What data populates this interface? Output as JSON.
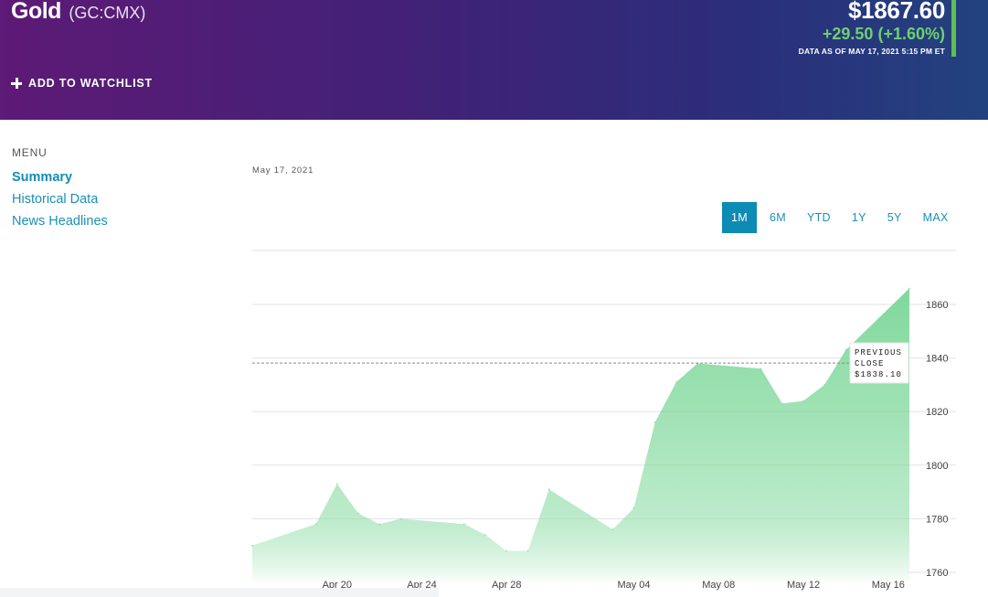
{
  "header": {
    "name": "Gold",
    "symbol": "(GC:CMX)",
    "price": "$1867.60",
    "change": "+29.50 (+1.60%)",
    "as_of": "DATA AS OF MAY 17, 2021 5:15 PM ET",
    "watchlist_label": "ADD TO WATCHLIST",
    "colors": {
      "positive": "#6fd06b",
      "bar": "#5fc04f"
    }
  },
  "menu": {
    "title": "MENU",
    "items": [
      {
        "label": "Summary",
        "active": true
      },
      {
        "label": "Historical Data",
        "active": false
      },
      {
        "label": "News Headlines",
        "active": false
      }
    ]
  },
  "chart_header": {
    "date": "May 17, 2021"
  },
  "ranges": [
    "1M",
    "6M",
    "YTD",
    "1Y",
    "5Y",
    "MAX"
  ],
  "chart_data": {
    "type": "area",
    "title": "",
    "xlabel": "",
    "ylabel": "",
    "ylim": [
      1760,
      1880
    ],
    "yticks": [
      "1860",
      "1840",
      "1820",
      "1800",
      "1780",
      "1760"
    ],
    "x_ticks": [
      "Apr 20",
      "Apr 24",
      "Apr 28",
      "May 04",
      "May 08",
      "May 12",
      "May 16"
    ],
    "x": [
      "Apr 16",
      "Apr 19",
      "Apr 20",
      "Apr 21",
      "Apr 22",
      "Apr 23",
      "Apr 26",
      "Apr 27",
      "Apr 28",
      "Apr 29",
      "Apr 30",
      "May 03",
      "May 04",
      "May 05",
      "May 06",
      "May 07",
      "May 10",
      "May 11",
      "May 12",
      "May 13",
      "May 14",
      "May 17"
    ],
    "values": [
      1770,
      1778,
      1793,
      1782,
      1778,
      1780,
      1778,
      1774,
      1768,
      1768,
      1791,
      1776,
      1784,
      1816,
      1831,
      1838,
      1836,
      1823,
      1824,
      1830,
      1843,
      1866
    ],
    "previous_close": {
      "label_line1": "PREVIOUS",
      "label_line2": "CLOSE",
      "value_label": "$1838.10",
      "value": 1838.1
    },
    "grid": true,
    "colors": {
      "fill_top": "#7fd89b",
      "fill_bottom": "#ffffff",
      "grid": "#e2e2e2"
    }
  }
}
